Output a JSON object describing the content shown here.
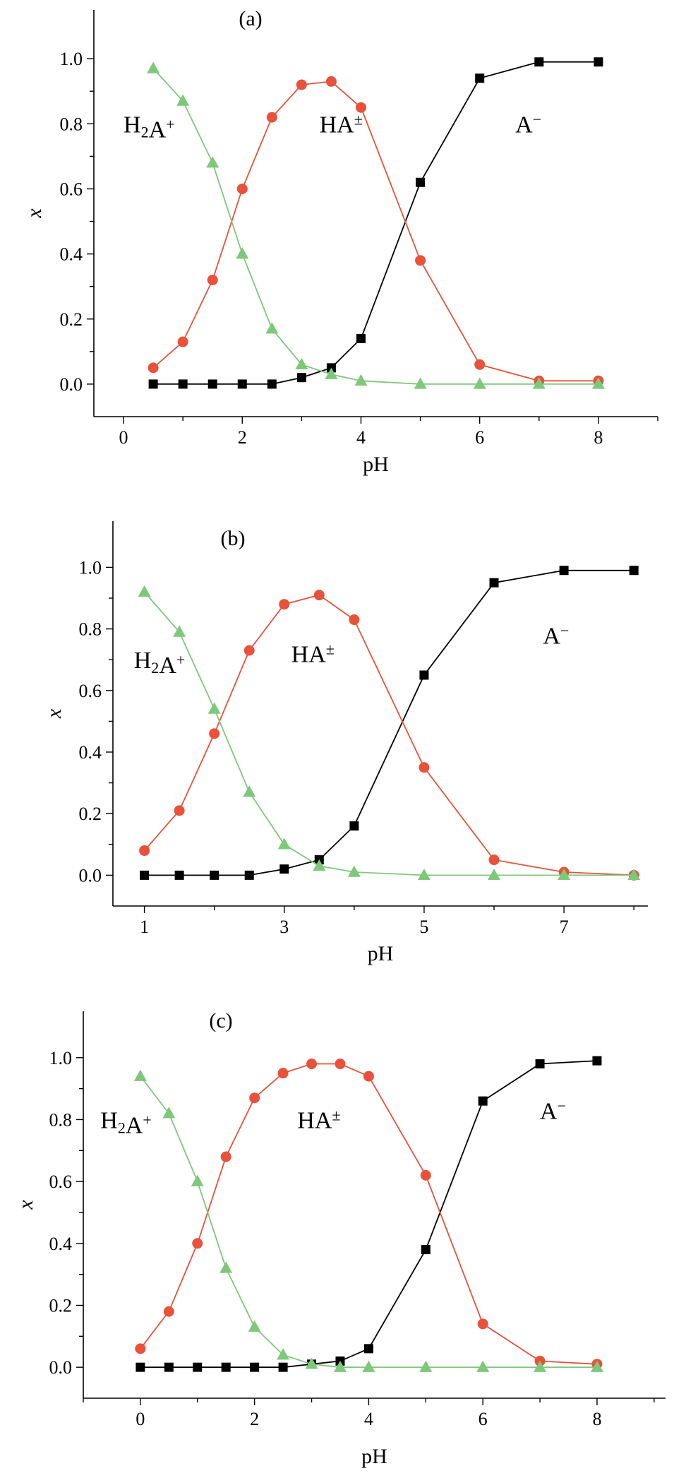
{
  "chart_data": [
    {
      "type": "line",
      "panel_label": "(a)",
      "xlabel": "pH",
      "ylabel": "x",
      "xlim": [
        -0.5,
        9
      ],
      "ylim": [
        -0.1,
        1.15
      ],
      "xticks": [
        0,
        2,
        4,
        6,
        8
      ],
      "xtick_labels": [
        "0",
        "2",
        "4",
        "6",
        "8"
      ],
      "yticks": [
        0.0,
        0.2,
        0.4,
        0.6,
        0.8,
        1.0
      ],
      "ytick_labels": [
        "0.0",
        "0.2",
        "0.4",
        "0.6",
        "0.8",
        "1.0"
      ],
      "legend": "none",
      "series": [
        {
          "name": "A⁻",
          "marker": "square",
          "color": "#000000",
          "x": [
            0.5,
            1.0,
            1.5,
            2.0,
            2.5,
            3.0,
            3.5,
            4.0,
            5.0,
            6.0,
            7.0,
            8.0
          ],
          "y": [
            0.0,
            0.0,
            0.0,
            0.0,
            0.0,
            0.02,
            0.05,
            0.14,
            0.62,
            0.94,
            0.99,
            0.99
          ]
        },
        {
          "name": "HA±",
          "marker": "circle",
          "color": "#e8523a",
          "x": [
            0.5,
            1.0,
            1.5,
            2.0,
            2.5,
            3.0,
            3.5,
            4.0,
            5.0,
            6.0,
            7.0,
            8.0
          ],
          "y": [
            0.05,
            0.13,
            0.32,
            0.6,
            0.82,
            0.92,
            0.93,
            0.85,
            0.38,
            0.06,
            0.01,
            0.01
          ]
        },
        {
          "name": "H₂A⁺",
          "marker": "triangle",
          "color": "#7ec87a",
          "x": [
            0.5,
            1.0,
            1.5,
            2.0,
            2.5,
            3.0,
            3.5,
            4.0,
            5.0,
            6.0,
            7.0,
            8.0
          ],
          "y": [
            0.97,
            0.87,
            0.68,
            0.4,
            0.17,
            0.06,
            0.03,
            0.01,
            0.0,
            0.0,
            0.0,
            0.0
          ]
        }
      ],
      "annotations": [
        {
          "text": "H₂A⁺",
          "x": 0.0,
          "y": 0.8
        },
        {
          "text": "HA±",
          "x": 3.3,
          "y": 0.8
        },
        {
          "text": "A⁻",
          "x": 6.6,
          "y": 0.8
        }
      ]
    },
    {
      "type": "line",
      "panel_label": "(b)",
      "xlabel": "pH",
      "ylabel": "x",
      "xlim": [
        0.55,
        8.2
      ],
      "ylim": [
        -0.1,
        1.15
      ],
      "xticks": [
        1,
        3,
        5,
        7
      ],
      "xtick_labels": [
        "1",
        "3",
        "5",
        "7"
      ],
      "yticks": [
        0.0,
        0.2,
        0.4,
        0.6,
        0.8,
        1.0
      ],
      "ytick_labels": [
        "0.0",
        "0.2",
        "0.4",
        "0.6",
        "0.8",
        "1.0"
      ],
      "legend": "none",
      "series": [
        {
          "name": "A⁻",
          "marker": "square",
          "color": "#000000",
          "x": [
            1.0,
            1.5,
            2.0,
            2.5,
            3.0,
            3.5,
            4.0,
            5.0,
            6.0,
            7.0,
            8.0
          ],
          "y": [
            0.0,
            0.0,
            0.0,
            0.0,
            0.02,
            0.05,
            0.16,
            0.65,
            0.95,
            0.99,
            0.99
          ]
        },
        {
          "name": "HA±",
          "marker": "circle",
          "color": "#e8523a",
          "x": [
            1.0,
            1.5,
            2.0,
            2.5,
            3.0,
            3.5,
            4.0,
            5.0,
            6.0,
            7.0,
            8.0
          ],
          "y": [
            0.08,
            0.21,
            0.46,
            0.73,
            0.88,
            0.91,
            0.83,
            0.35,
            0.05,
            0.01,
            0.0
          ]
        },
        {
          "name": "H₂A⁺",
          "marker": "triangle",
          "color": "#7ec87a",
          "x": [
            1.0,
            1.5,
            2.0,
            2.5,
            3.0,
            3.5,
            4.0,
            5.0,
            6.0,
            7.0,
            8.0
          ],
          "y": [
            0.92,
            0.79,
            0.54,
            0.27,
            0.1,
            0.03,
            0.01,
            0.0,
            0.0,
            0.0,
            0.0
          ]
        }
      ],
      "annotations": [
        {
          "text": "H₂A⁺",
          "x": 0.85,
          "y": 0.7
        },
        {
          "text": "HA±",
          "x": 3.1,
          "y": 0.72
        },
        {
          "text": "A⁻",
          "x": 6.7,
          "y": 0.78
        }
      ]
    },
    {
      "type": "line",
      "panel_label": "(c)",
      "xlabel": "pH",
      "ylabel": "x",
      "xlim": [
        -1,
        9.2
      ],
      "ylim": [
        -0.1,
        1.15
      ],
      "xticks": [
        0,
        2,
        4,
        6,
        8
      ],
      "xtick_labels": [
        "0",
        "2",
        "4",
        "6",
        "8"
      ],
      "yticks": [
        0.0,
        0.2,
        0.4,
        0.6,
        0.8,
        1.0
      ],
      "ytick_labels": [
        "0.0",
        "0.2",
        "0.4",
        "0.6",
        "0.8",
        "1.0"
      ],
      "legend": "none",
      "series": [
        {
          "name": "A⁻",
          "marker": "square",
          "color": "#000000",
          "x": [
            0.0,
            0.5,
            1.0,
            1.5,
            2.0,
            2.5,
            3.0,
            3.5,
            4.0,
            5.0,
            6.0,
            7.0,
            8.0
          ],
          "y": [
            0.0,
            0.0,
            0.0,
            0.0,
            0.0,
            0.0,
            0.01,
            0.02,
            0.06,
            0.38,
            0.86,
            0.98,
            0.99
          ]
        },
        {
          "name": "HA±",
          "marker": "circle",
          "color": "#e8523a",
          "x": [
            0.0,
            0.5,
            1.0,
            1.5,
            2.0,
            2.5,
            3.0,
            3.5,
            4.0,
            5.0,
            6.0,
            7.0,
            8.0
          ],
          "y": [
            0.06,
            0.18,
            0.4,
            0.68,
            0.87,
            0.95,
            0.98,
            0.98,
            0.94,
            0.62,
            0.14,
            0.02,
            0.01
          ]
        },
        {
          "name": "H₂A⁺",
          "marker": "triangle",
          "color": "#7ec87a",
          "x": [
            0.0,
            0.5,
            1.0,
            1.5,
            2.0,
            2.5,
            3.0,
            3.5,
            4.0,
            5.0,
            6.0,
            7.0,
            8.0
          ],
          "y": [
            0.94,
            0.82,
            0.6,
            0.32,
            0.13,
            0.04,
            0.01,
            0.0,
            0.0,
            0.0,
            0.0,
            0.0,
            0.0
          ]
        }
      ],
      "annotations": [
        {
          "text": "H₂A⁺",
          "x": -0.7,
          "y": 0.8
        },
        {
          "text": "HA±",
          "x": 2.75,
          "y": 0.8
        },
        {
          "text": "A⁻",
          "x": 7.0,
          "y": 0.83
        }
      ]
    }
  ]
}
